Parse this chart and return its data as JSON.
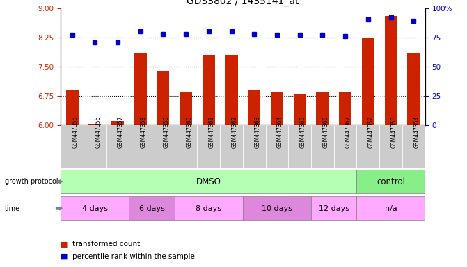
{
  "title": "GDS3802 / 1435141_at",
  "samples": [
    "GSM447355",
    "GSM447356",
    "GSM447357",
    "GSM447358",
    "GSM447359",
    "GSM447360",
    "GSM447361",
    "GSM447362",
    "GSM447363",
    "GSM447364",
    "GSM447365",
    "GSM447366",
    "GSM447367",
    "GSM447352",
    "GSM447353",
    "GSM447354"
  ],
  "bar_values": [
    6.9,
    6.02,
    6.12,
    7.85,
    7.4,
    6.85,
    7.8,
    7.8,
    6.9,
    6.85,
    6.8,
    6.85,
    6.85,
    8.25,
    8.8,
    7.85
  ],
  "dot_values": [
    77,
    71,
    71,
    80,
    78,
    78,
    80,
    80,
    78,
    77,
    77,
    77,
    76,
    90,
    92,
    89
  ],
  "ylim_left": [
    6,
    9
  ],
  "ylim_right": [
    0,
    100
  ],
  "yticks_left": [
    6,
    6.75,
    7.5,
    8.25,
    9
  ],
  "yticks_right": [
    0,
    25,
    50,
    75,
    100
  ],
  "bar_color": "#cc2200",
  "dot_color": "#0000cc",
  "grid_lines": [
    6.75,
    7.5,
    8.25
  ],
  "protocol_groups": [
    {
      "label": "DMSO",
      "start": 0,
      "end": 13,
      "color": "#b3ffb3"
    },
    {
      "label": "control",
      "start": 13,
      "end": 16,
      "color": "#88ee88"
    }
  ],
  "time_groups": [
    {
      "label": "4 days",
      "start": 0,
      "end": 3,
      "color": "#ffaaff"
    },
    {
      "label": "6 days",
      "start": 3,
      "end": 5,
      "color": "#dd88dd"
    },
    {
      "label": "8 days",
      "start": 5,
      "end": 8,
      "color": "#ffaaff"
    },
    {
      "label": "10 days",
      "start": 8,
      "end": 11,
      "color": "#dd88dd"
    },
    {
      "label": "12 days",
      "start": 11,
      "end": 13,
      "color": "#ffaaff"
    },
    {
      "label": "n/a",
      "start": 13,
      "end": 16,
      "color": "#ffaaff"
    }
  ],
  "sample_box_color": "#cccccc",
  "legend_bar_label": "transformed count",
  "legend_dot_label": "percentile rank within the sample",
  "left_ylabel_color": "#cc2200",
  "right_ylabel_color": "#0000cc",
  "right_ytick_labels": [
    "0",
    "25",
    "50",
    "75",
    "100%"
  ],
  "background_color": "#ffffff"
}
